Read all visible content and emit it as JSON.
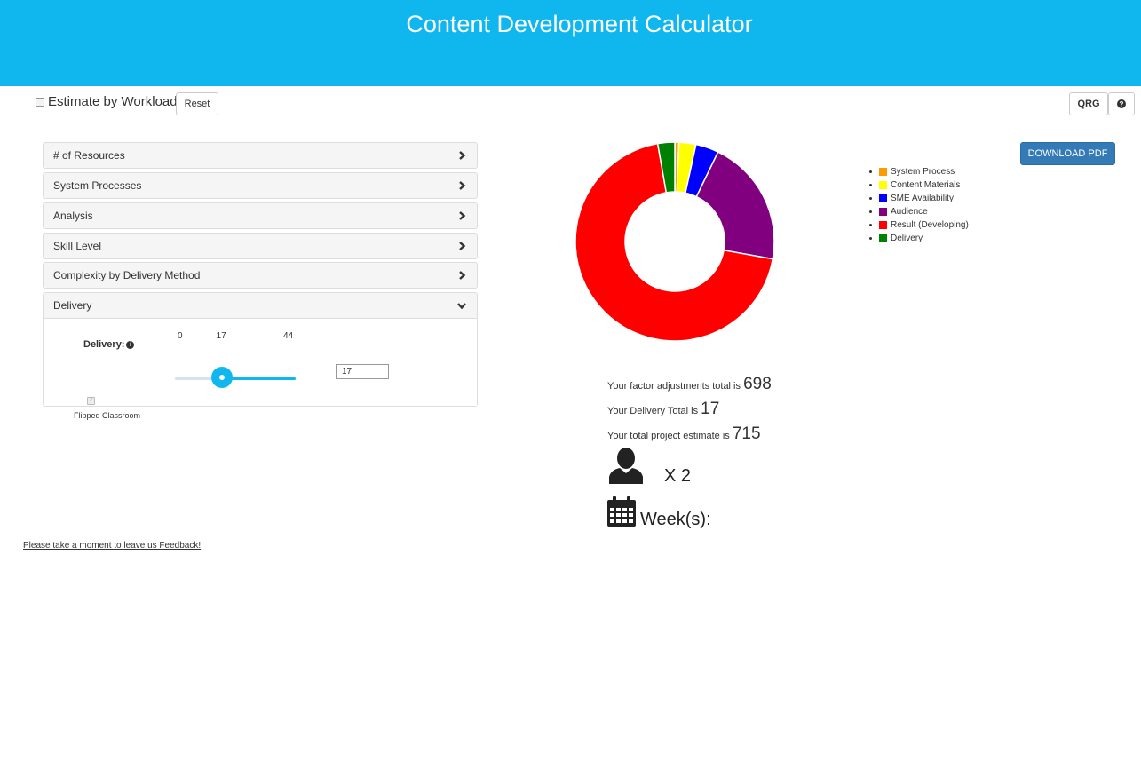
{
  "header": {
    "title": "Content Development Calculator",
    "background": "#10b7ef"
  },
  "toolbar": {
    "workload_label": "Estimate by Workload",
    "workload_checked": false,
    "reset_label": "Reset",
    "qrg_label": "QRG",
    "help_icon": "question-circle-icon",
    "help_glyph": "?"
  },
  "accordion": {
    "panels": [
      {
        "label": "# of Resources",
        "expanded": false
      },
      {
        "label": "System Processes",
        "expanded": false
      },
      {
        "label": "Analysis",
        "expanded": false
      },
      {
        "label": "Skill Level",
        "expanded": false
      },
      {
        "label": "Complexity by Delivery Method",
        "expanded": false
      },
      {
        "label": "Delivery",
        "expanded": true
      }
    ],
    "delivery": {
      "label": "Delivery:",
      "info_glyph": "i",
      "min": 0,
      "max": 44,
      "value": 17,
      "min_label": "0",
      "value_label": "17",
      "max_label": "44",
      "input_value": "17",
      "flipped_label": "Flipped Classroom",
      "flipped_checked": true,
      "flipped_glyph": "✓"
    }
  },
  "download_label": "DOWNLOAD PDF",
  "legend": [
    {
      "label": "System Process",
      "color": "#ff9900"
    },
    {
      "label": "Content Materials",
      "color": "#ffff00"
    },
    {
      "label": "SME Availability",
      "color": "#0000ff"
    },
    {
      "label": "Audience",
      "color": "#800080"
    },
    {
      "label": "Result (Developing)",
      "color": "#ff0000"
    },
    {
      "label": "Delivery",
      "color": "#008000"
    }
  ],
  "chart_data": {
    "type": "pie",
    "labels": [
      "System Process",
      "Content Materials",
      "SME Availability",
      "Audience",
      "Result (Developing)",
      "Delivery"
    ],
    "values": [
      4,
      17,
      23,
      127,
      427,
      17
    ],
    "colors": [
      "#ff9900",
      "#ffff00",
      "#0000ff",
      "#800080",
      "#ff0000",
      "#008000"
    ],
    "donut": true
  },
  "stats": {
    "factor_text": "Your factor adjustments total is ",
    "factor_value": "698",
    "delivery_text": "Your Delivery Total is ",
    "delivery_value": "17",
    "total_text": "Your total project estimate is ",
    "total_value": "715",
    "resources_text": "X 2",
    "weeks_text": "Week(s):"
  },
  "feedback_link": "Please take a moment to leave us Feedback!"
}
